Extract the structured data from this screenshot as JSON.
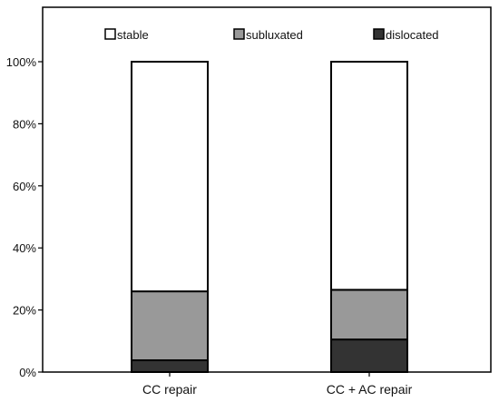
{
  "chart_data": {
    "type": "bar",
    "stacked": true,
    "categories": [
      "CC repair",
      "CC + AC repair"
    ],
    "series": [
      {
        "name": "dislocated",
        "values": [
          3.8,
          10.5
        ],
        "color": "#333333"
      },
      {
        "name": "subluxated",
        "values": [
          22.2,
          16.0
        ],
        "color": "#999999"
      },
      {
        "name": "stable",
        "values": [
          74.0,
          73.5
        ],
        "color": "#ffffff"
      }
    ],
    "legend_order": [
      "stable",
      "subluxated",
      "dislocated"
    ],
    "y_ticks": [
      "0%",
      "20%",
      "40%",
      "60%",
      "80%",
      "100%"
    ],
    "ylim": [
      0,
      100
    ],
    "title": "",
    "xlabel": "",
    "ylabel": "",
    "legend_position": "top",
    "grid": false
  }
}
